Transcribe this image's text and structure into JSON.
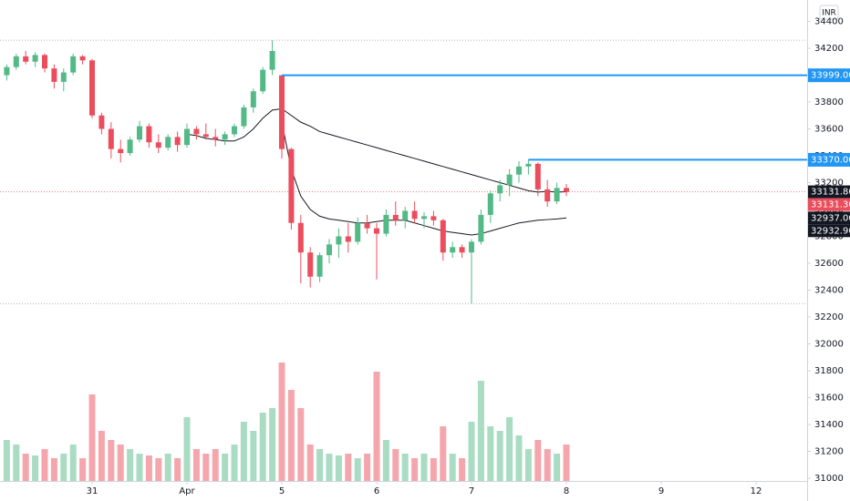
{
  "chart_data": {
    "type": "candlestick",
    "currency": "INR",
    "categories": [
      null,
      null,
      null,
      null,
      null,
      null,
      null,
      null,
      null,
      "31",
      null,
      null,
      null,
      null,
      null,
      null,
      null,
      null,
      null,
      "Apr",
      null,
      null,
      null,
      null,
      null,
      null,
      null,
      null,
      null,
      "5",
      null,
      null,
      null,
      null,
      null,
      null,
      null,
      null,
      null,
      "6",
      null,
      null,
      null,
      null,
      null,
      null,
      null,
      null,
      null,
      "7",
      null,
      null,
      null,
      null,
      null,
      null,
      null,
      null,
      null,
      "8",
      null,
      null,
      null,
      null,
      null,
      null,
      null,
      null,
      null,
      "9",
      null,
      null,
      null,
      null,
      null,
      null,
      null,
      null,
      null,
      "12",
      null,
      null
    ],
    "open": [
      34000,
      34060,
      34140,
      34100,
      34150,
      34050,
      33950,
      34020,
      34140,
      34110,
      33700,
      33600,
      33450,
      33420,
      33520,
      33620,
      33500,
      33460,
      33540,
      33480,
      33600,
      33560,
      33540,
      33520,
      33560,
      33620,
      33760,
      33880,
      34040,
      33999,
      33450,
      32900,
      32680,
      32500,
      32660,
      32740,
      32800,
      32760,
      32900,
      32860,
      32820,
      32960,
      32920,
      32990,
      32930,
      32950,
      32920,
      32680,
      32720,
      32680,
      32760,
      32960,
      33120,
      33180,
      33260,
      33320,
      33340,
      33150,
      33060,
      33160,
      null,
      null,
      null,
      null,
      null,
      null,
      null,
      null,
      null,
      null,
      null,
      null,
      null,
      null,
      null,
      null,
      null,
      null,
      null,
      null,
      null,
      null
    ],
    "high": [
      34080,
      34160,
      34180,
      34170,
      34160,
      34080,
      34050,
      34160,
      34150,
      34120,
      33720,
      33650,
      33520,
      33540,
      33660,
      33640,
      33560,
      33560,
      33580,
      33640,
      33620,
      33640,
      33600,
      33580,
      33640,
      33780,
      33900,
      34060,
      34260,
      34000,
      33460,
      32960,
      32720,
      32680,
      32780,
      32860,
      32900,
      32940,
      32960,
      32900,
      33000,
      33060,
      33020,
      33060,
      32980,
      32990,
      32930,
      32760,
      32740,
      32780,
      33000,
      33140,
      33220,
      33300,
      33360,
      33370,
      33350,
      33220,
      33200,
      33190,
      null,
      null,
      null,
      null,
      null,
      null,
      null,
      null,
      null,
      null,
      null,
      null,
      null,
      null,
      null,
      null,
      null,
      null,
      null,
      null,
      null,
      null
    ],
    "low": [
      33960,
      34040,
      34080,
      34060,
      34020,
      33900,
      33880,
      34000,
      34080,
      33680,
      33560,
      33380,
      33350,
      33400,
      33500,
      33460,
      33420,
      33440,
      33430,
      33460,
      33520,
      33520,
      33470,
      33480,
      33540,
      33600,
      33720,
      33860,
      34000,
      33380,
      32850,
      32450,
      32420,
      32460,
      32600,
      32640,
      32680,
      32740,
      32820,
      32480,
      32800,
      32880,
      32860,
      32900,
      32860,
      32880,
      32620,
      32640,
      32640,
      32300,
      32740,
      32900,
      33060,
      33100,
      33200,
      33260,
      33100,
      33020,
      33040,
      33100,
      null,
      null,
      null,
      null,
      null,
      null,
      null,
      null,
      null,
      null,
      null,
      null,
      null,
      null,
      null,
      null,
      null,
      null,
      null,
      null,
      null,
      null
    ],
    "close": [
      34060,
      34140,
      34100,
      34150,
      34050,
      33950,
      34020,
      34140,
      34110,
      33700,
      33600,
      33450,
      33420,
      33520,
      33620,
      33500,
      33460,
      33540,
      33480,
      33600,
      33560,
      33540,
      33520,
      33560,
      33620,
      33760,
      33880,
      34040,
      34180,
      33450,
      32900,
      32680,
      32500,
      32660,
      32740,
      32800,
      32760,
      32900,
      32860,
      32820,
      32960,
      32920,
      32990,
      32930,
      32950,
      32920,
      32680,
      32720,
      32680,
      32760,
      32960,
      33120,
      33180,
      33260,
      33320,
      33340,
      33150,
      33060,
      33160,
      33131.3,
      null,
      null,
      null,
      null,
      null,
      null,
      null,
      null,
      null,
      null,
      null,
      null,
      null,
      null,
      null,
      null,
      null,
      null,
      null,
      null,
      null,
      null
    ],
    "volume": [
      45,
      40,
      30,
      28,
      35,
      25,
      30,
      40,
      25,
      95,
      55,
      45,
      40,
      35,
      30,
      28,
      25,
      30,
      25,
      70,
      35,
      30,
      35,
      30,
      40,
      65,
      55,
      75,
      80,
      130,
      100,
      80,
      40,
      35,
      30,
      28,
      30,
      25,
      30,
      120,
      45,
      35,
      30,
      25,
      30,
      25,
      60,
      30,
      25,
      65,
      110,
      60,
      55,
      70,
      50,
      35,
      45,
      35,
      30,
      40,
      null,
      null,
      null,
      null,
      null,
      null,
      null,
      null,
      null,
      null,
      null,
      null,
      null,
      null,
      null,
      null,
      null,
      null,
      null,
      null,
      null,
      null
    ],
    "colors": {
      "up": "#53b987",
      "down": "#eb4d5c"
    },
    "moving_averages": [
      {
        "color": "#131722",
        "values": [
          null,
          null,
          null,
          null,
          null,
          null,
          null,
          null,
          null,
          null,
          null,
          null,
          null,
          null,
          null,
          null,
          null,
          null,
          null,
          33560,
          33550,
          33530,
          33520,
          33510,
          33510,
          33540,
          33600,
          33680,
          33740,
          33750,
          33700,
          33650,
          33620,
          33580,
          33560,
          33540,
          33520,
          33500,
          33480,
          33460,
          33440,
          33420,
          33400,
          33380,
          33360,
          33340,
          33320,
          33300,
          33280,
          33260,
          33240,
          33220,
          33200,
          33180,
          33160,
          33140,
          33130,
          33135,
          33130,
          33131.8,
          null,
          null,
          null,
          null,
          null,
          null,
          null,
          null,
          null,
          null,
          null,
          null,
          null,
          null,
          null,
          null,
          null,
          null,
          null,
          null,
          null,
          null
        ]
      },
      {
        "color": "#131722",
        "values": [
          null,
          null,
          null,
          null,
          null,
          null,
          null,
          null,
          null,
          null,
          null,
          null,
          null,
          null,
          null,
          null,
          null,
          null,
          null,
          null,
          null,
          null,
          null,
          null,
          null,
          null,
          null,
          null,
          null,
          33650,
          33300,
          33100,
          33000,
          32950,
          32930,
          32920,
          32910,
          32900,
          32900,
          32910,
          32920,
          32920,
          32920,
          32900,
          32880,
          32860,
          32840,
          32830,
          32820,
          32810,
          32820,
          32840,
          32860,
          32880,
          32900,
          32910,
          32920,
          32925,
          32930,
          32937,
          null,
          null,
          null,
          null,
          null,
          null,
          null,
          null,
          null,
          null,
          null,
          null,
          null,
          null,
          null,
          null,
          null,
          null,
          null,
          null,
          null,
          null
        ]
      }
    ],
    "levels": [
      {
        "value": 33999,
        "label": "33999.00",
        "color": "#2196f3"
      },
      {
        "value": 33370,
        "label": "33370.00",
        "color": "#2196f3"
      }
    ],
    "price_labels": [
      {
        "value": 33131.8,
        "label": "33131.80",
        "color": "#131722"
      },
      {
        "value": 33131.3,
        "label": "33131.30",
        "color": "#eb4d5c",
        "line": "dotted"
      },
      {
        "value": 32937,
        "label": "32937.00",
        "color": "#131722"
      },
      {
        "value": 32932.9,
        "label": "32932.90",
        "color": "#131722"
      }
    ],
    "ylim": [
      31000,
      34400
    ],
    "yticks": [
      31000,
      31200,
      31400,
      31600,
      31800,
      32000,
      32200,
      32400,
      32600,
      32800,
      33000,
      33200,
      33400,
      33600,
      33800,
      34000,
      34200,
      34400
    ]
  }
}
